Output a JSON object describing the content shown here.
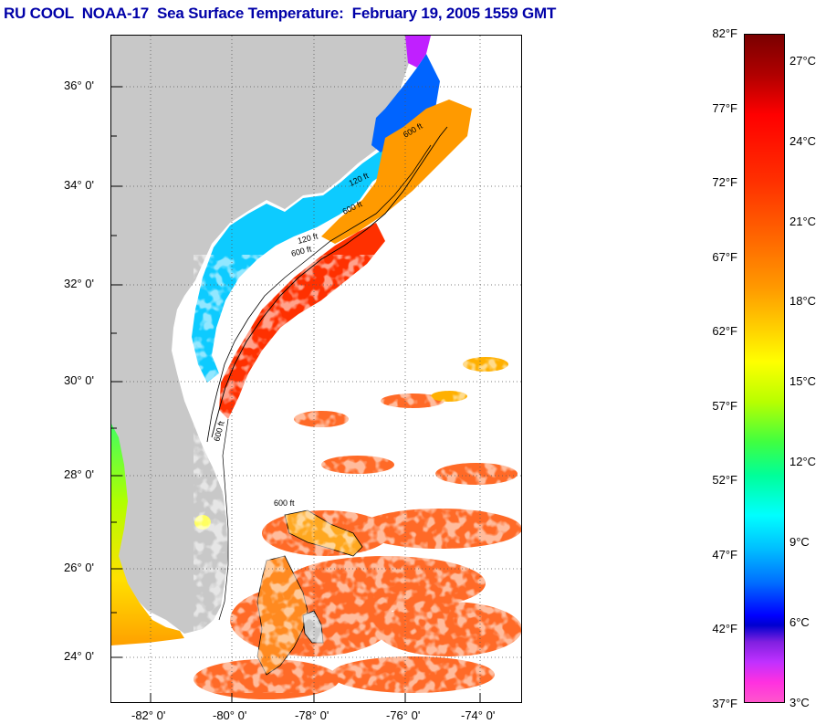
{
  "title": "RU COOL  NOAA-17  Sea Surface Temperature:  February 19, 2005 1559 GMT",
  "map": {
    "lat_labels": [
      "36° 0'",
      "34° 0'",
      "32° 0'",
      "30° 0'",
      "28° 0'",
      "26° 0'",
      "24° 0'"
    ],
    "lon_labels": [
      "-82° 0'",
      "-80° 0'",
      "-78° 0'",
      "-76° 0'",
      "-74° 0'"
    ],
    "isobath_labels": [
      "600 ft",
      "120 ft",
      "600 ft",
      "120 ft",
      "600 ft",
      "600 ft",
      "600 ft"
    ],
    "colors": {
      "land": "#c8c8c8",
      "cloud": "#ffffff",
      "grid": "#555555"
    }
  },
  "colorbar": {
    "fahrenheit": [
      "82°F",
      "77°F",
      "72°F",
      "67°F",
      "62°F",
      "57°F",
      "52°F",
      "47°F",
      "42°F",
      "37°F"
    ],
    "celsius": [
      "27°C",
      "24°C",
      "21°C",
      "18°C",
      "15°C",
      "12°C",
      "9°C",
      "6°C",
      "3°C"
    ]
  }
}
